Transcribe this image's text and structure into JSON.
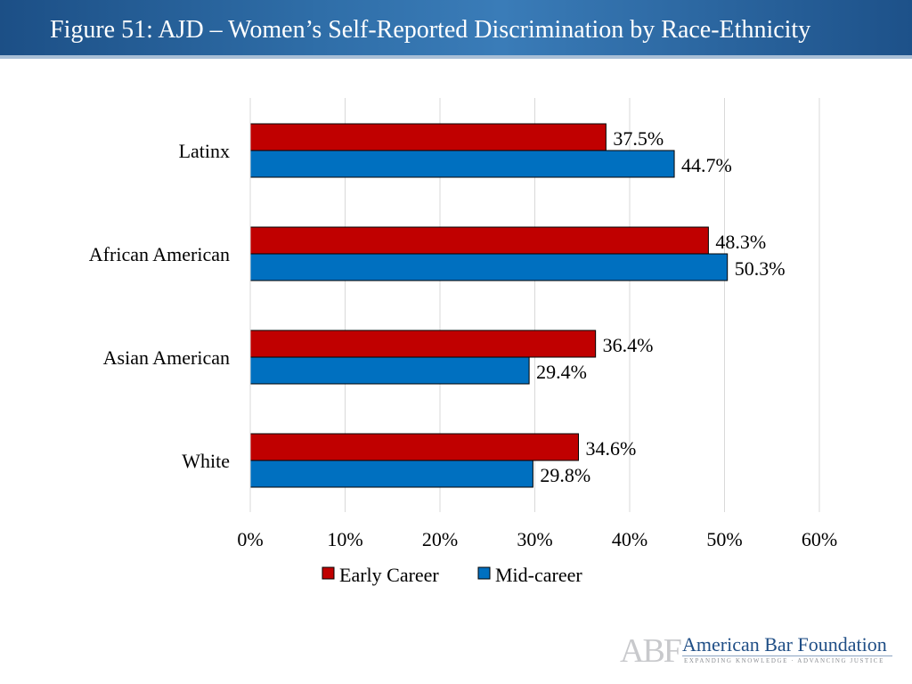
{
  "header": {
    "title": "Figure 51: AJD – Women’s Self-Reported Discrimination by Race-Ethnicity"
  },
  "chart_data": {
    "type": "bar",
    "orientation": "horizontal",
    "title": "Figure 51: AJD – Women’s Self-Reported Discrimination by Race-Ethnicity",
    "categories": [
      "Latinx",
      "African American",
      "Asian American",
      "White"
    ],
    "series": [
      {
        "name": "Early Career",
        "color": "#c00000",
        "values": [
          37.5,
          48.3,
          36.4,
          34.6
        ]
      },
      {
        "name": "Mid-career",
        "color": "#0070c0",
        "values": [
          44.7,
          50.3,
          29.4,
          29.8
        ]
      }
    ],
    "xlim": [
      0,
      60
    ],
    "xticks": [
      0,
      10,
      20,
      30,
      40,
      50,
      60
    ],
    "tick_format": "%",
    "value_format": "%.1f%",
    "grid": true,
    "legend_position": "bottom",
    "xlabel": "",
    "ylabel": ""
  },
  "footer": {
    "logo_mark": "ABF",
    "logo_name": "American Bar Foundation",
    "logo_tagline": "EXPANDING KNOWLEDGE · ADVANCING JUSTICE"
  }
}
